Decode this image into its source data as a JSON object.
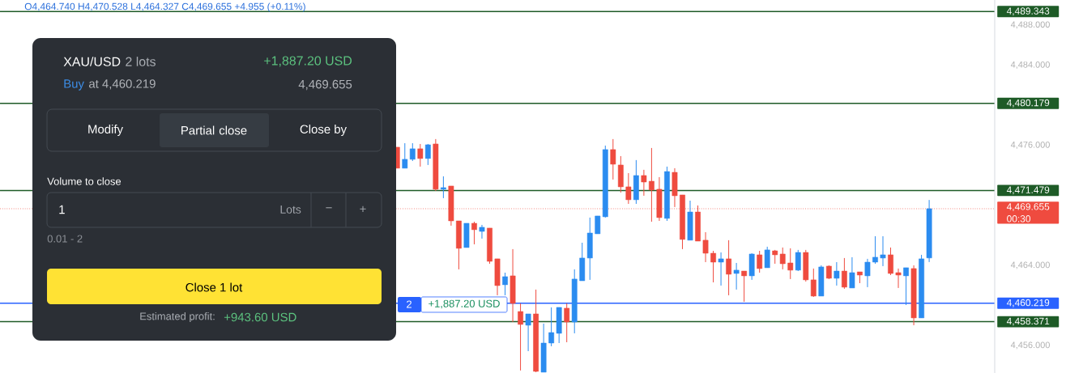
{
  "chart_data": {
    "type": "candlestick",
    "categories": [
      null,
      null,
      null,
      null,
      null,
      null,
      null,
      null,
      null,
      null,
      null,
      null,
      null,
      null,
      null,
      null,
      null,
      null,
      null,
      null,
      null,
      null,
      null,
      null,
      null,
      null,
      null,
      null,
      null,
      null,
      null,
      null,
      null,
      null,
      null,
      null,
      null,
      null,
      null,
      null,
      null,
      null,
      null,
      null,
      null,
      null,
      null,
      null,
      null,
      null,
      null,
      null,
      null,
      null,
      null,
      null,
      null,
      null,
      null,
      null,
      null,
      null,
      null,
      null,
      null,
      null,
      null,
      null,
      null,
      null,
      null,
      null,
      null,
      null,
      null,
      null,
      null,
      null,
      null,
      null,
      null,
      null,
      null,
      null,
      null,
      null,
      null,
      null,
      null,
      null,
      null,
      null,
      null,
      null,
      null,
      null,
      null,
      null,
      null,
      null,
      null,
      null,
      null,
      null,
      null,
      null,
      null,
      null,
      null,
      null,
      null,
      null,
      null,
      null,
      null,
      null,
      null,
      null,
      null,
      null,
      null,
      null,
      null,
      null,
      null,
      null,
      null,
      null,
      null
    ],
    "ohlc": [
      null,
      null,
      null,
      null,
      null,
      null,
      null,
      null,
      null,
      null,
      null,
      null,
      null,
      null,
      null,
      null,
      null,
      null,
      null,
      null,
      null,
      null,
      null,
      null,
      null,
      null,
      null,
      null,
      null,
      null,
      null,
      null,
      null,
      null,
      null,
      null,
      null,
      null,
      null,
      null,
      null,
      null,
      null,
      null,
      null,
      null,
      null,
      null,
      null,
      null,
      null,
      [
        4475.8,
        4475.8,
        4473.7,
        4473.7
      ],
      [
        4473.7,
        4476.2,
        4473.7,
        4474.59
      ],
      [
        4474.59,
        4476.2,
        4474.42,
        4475.64
      ],
      [
        4475.64,
        4476.12,
        4473.86,
        4474.67
      ],
      [
        4474.67,
        4476.12,
        4474.02,
        4476.04
      ],
      [
        4476.12,
        4476.61,
        4471.43,
        4471.6
      ],
      [
        4471.6,
        4472.89,
        4470.71,
        4471.76
      ],
      [
        4471.92,
        4471.92,
        4467.96,
        4468.44
      ],
      [
        4468.44,
        4468.44,
        4463.6,
        4465.7
      ],
      [
        4465.78,
        4468.2,
        4465.78,
        4468.2
      ],
      [
        4468.2,
        4468.36,
        4466.1,
        4467.56
      ],
      [
        4467.39,
        4468.04,
        4466.67,
        4467.8
      ],
      [
        4467.72,
        4467.72,
        4464.16,
        4464.4
      ],
      [
        4464.65,
        4464.65,
        4461.01,
        4461.98
      ],
      [
        4462.06,
        4463.27,
        4461.01,
        4462.87
      ],
      [
        4462.95,
        4465.62,
        4458.34,
        4460.2
      ],
      [
        4459.39,
        4460.2,
        4453.5,
        4458.1
      ],
      [
        4458.02,
        4459.15,
        4455.43,
        4459.15
      ],
      [
        4459.15,
        4461.58,
        4453.33,
        4453.41
      ],
      [
        4453.33,
        4458.18,
        4453.33,
        4456.24
      ],
      [
        4456.24,
        4459.8,
        4455.92,
        4457.29
      ],
      [
        4457.21,
        4459.8,
        4456.24,
        4459.8
      ],
      [
        4459.72,
        4460.2,
        4456.32,
        4458.34
      ],
      [
        4458.34,
        4463.6,
        4457.21,
        4462.63
      ],
      [
        4462.46,
        4466.26,
        4462.46,
        4464.73
      ],
      [
        4464.73,
        4468.77,
        4462.55,
        4467.23
      ],
      [
        4467.15,
        4468.93,
        4467.15,
        4468.93
      ],
      [
        4468.85,
        4475.96,
        4468.77,
        4475.56
      ],
      [
        4475.56,
        4476.61,
        4472.57,
        4474.1
      ],
      [
        4474.02,
        4474.91,
        4471.27,
        4471.84
      ],
      [
        4471.84,
        4473.21,
        4470.14,
        4470.55
      ],
      [
        4470.55,
        4474.51,
        4470.14,
        4472.97
      ],
      [
        4472.97,
        4473.54,
        4470.95,
        4472.32
      ],
      [
        4472.4,
        4475.72,
        4468.36,
        4471.52
      ],
      [
        4471.6,
        4472.81,
        4468.44,
        4468.77
      ],
      [
        4468.69,
        4473.86,
        4468.44,
        4473.37
      ],
      [
        4473.29,
        4473.7,
        4469.82,
        4470.95
      ],
      [
        4471.03,
        4471.03,
        4465.62,
        4466.59
      ],
      [
        4466.51,
        4470.46,
        4466.51,
        4469.33
      ],
      [
        4469.33,
        4469.98,
        4466.42,
        4466.42
      ],
      [
        4466.51,
        4467.31,
        4464.32,
        4465.21
      ],
      [
        4465.21,
        4465.45,
        4462.3,
        4464.32
      ],
      [
        4464.32,
        4465.29,
        4461.98,
        4464.65
      ],
      [
        4464.65,
        4466.51,
        4461.01,
        4463.11
      ],
      [
        4463.19,
        4464.24,
        4461.58,
        4463.52
      ],
      [
        4463.43,
        4463.43,
        4460.36,
        4462.95
      ],
      [
        4462.95,
        4465.21,
        4462.55,
        4465.13
      ],
      [
        4465.05,
        4465.45,
        4463.27,
        4463.68
      ],
      [
        4463.76,
        4465.86,
        4463.76,
        4465.54
      ],
      [
        4465.45,
        4465.54,
        4464.16,
        4465.05
      ],
      [
        4465.13,
        4465.78,
        4463.6,
        4464.16
      ],
      [
        4464.24,
        4465.7,
        4462.63,
        4463.52
      ],
      [
        4463.52,
        4465.54,
        4463.43,
        4465.29
      ],
      [
        4465.29,
        4465.54,
        4462.38,
        4462.55
      ],
      [
        4462.55,
        4463.68,
        4460.85,
        4460.93
      ],
      [
        4460.93,
        4464.0,
        4460.93,
        4463.84
      ],
      [
        4463.92,
        4464.0,
        4462.63,
        4462.71
      ],
      [
        4462.71,
        4464.32,
        4461.98,
        4463.43
      ],
      [
        4463.43,
        4464.73,
        4461.66,
        4461.82
      ],
      [
        4461.74,
        4464.81,
        4461.74,
        4463.27
      ],
      [
        4463.35,
        4463.35,
        4462.22,
        4463.03
      ],
      [
        4462.95,
        4464.65,
        4461.82,
        4464.32
      ],
      [
        4464.32,
        4466.91,
        4464.16,
        4464.81
      ],
      [
        4464.73,
        4466.91,
        4463.92,
        4465.05
      ],
      [
        4465.05,
        4465.78,
        4463.03,
        4463.19
      ],
      [
        4463.27,
        4463.68,
        4461.74,
        4463.03
      ],
      [
        4462.95,
        4463.76,
        4460.04,
        4463.76
      ],
      [
        4463.68,
        4464.0,
        4458.02,
        4458.75
      ],
      [
        4458.75,
        4465.05,
        4458.75,
        4464.65
      ],
      [
        4464.74,
        4470.528,
        4464.327,
        4469.655
      ],
      null,
      null,
      null,
      null,
      null,
      null,
      null,
      null
    ],
    "colors": [
      null,
      null,
      null,
      null,
      null,
      null,
      null,
      null,
      null,
      null,
      null,
      null,
      null,
      null,
      null,
      null,
      null,
      null,
      null,
      null,
      null,
      null,
      null,
      null,
      null,
      null,
      null,
      null,
      null,
      null,
      null,
      null,
      null,
      null,
      null,
      null,
      null,
      null,
      null,
      null,
      null,
      null,
      null,
      null,
      null,
      null,
      null,
      null,
      null,
      null,
      null,
      "#ef4b3f",
      "#2b8cf0",
      "#2b8cf0",
      "#ef4b3f",
      "#2b8cf0",
      "#ef4b3f",
      "#2b8cf0",
      "#ef4b3f",
      "#ef4b3f",
      "#2b8cf0",
      "#ef4b3f",
      "#2b8cf0",
      "#ef4b3f",
      "#ef4b3f",
      "#2b8cf0",
      "#ef4b3f",
      "#ef4b3f",
      "#2b8cf0",
      "#ef4b3f",
      "#2b8cf0",
      "#2b8cf0",
      "#2b8cf0",
      "#ef4b3f",
      "#2b8cf0",
      "#2b8cf0",
      "#2b8cf0",
      "#2b8cf0",
      "#2b8cf0",
      "#ef4b3f",
      "#ef4b3f",
      "#ef4b3f",
      "#2b8cf0",
      "#ef4b3f",
      "#ef4b3f",
      "#ef4b3f",
      "#2b8cf0",
      "#ef4b3f",
      "#ef4b3f",
      "#2b8cf0",
      "#ef4b3f",
      "#ef4b3f",
      "#ef4b3f",
      "#2b8cf0",
      "#ef4b3f",
      "#2b8cf0",
      "#ef4b3f",
      "#2b8cf0",
      "#ef4b3f",
      "#2b8cf0",
      "#ef4b3f",
      "#ef4b3f",
      "#ef4b3f",
      "#2b8cf0",
      "#ef4b3f",
      "#ef4b3f",
      "#2b8cf0",
      "#ef4b3f",
      "#2b8cf0",
      "#ef4b3f",
      "#2b8cf0",
      "#ef4b3f",
      "#2b8cf0",
      "#2b8cf0",
      "#2b8cf0",
      "#ef4b3f",
      "#ef4b3f",
      "#2b8cf0",
      "#ef4b3f",
      "#2b8cf0",
      "#2b8cf0",
      null,
      null,
      null,
      null,
      null,
      null,
      null,
      null
    ],
    "ylim": [
      4453.25,
      4490.5
    ],
    "yticks": [
      {
        "value": 4456,
        "label": "4,456.000"
      },
      {
        "value": 4464,
        "label": "4,464.000"
      },
      {
        "value": 4476,
        "label": "4,476.000"
      },
      {
        "value": 4484,
        "label": "4,484.000"
      },
      {
        "value": 4488,
        "label": "4,488.000"
      }
    ],
    "ref_lines": [
      {
        "axis": "y",
        "value": 4489.343,
        "label": "4,489.343",
        "color": "#1e5b27"
      },
      {
        "axis": "y",
        "value": 4480.179,
        "label": "4,480.179",
        "color": "#1e5b27"
      },
      {
        "axis": "y",
        "value": 4471.479,
        "label": "4,471.479",
        "color": "#1e5b27"
      },
      {
        "axis": "y",
        "value": 4469.655,
        "label": "4,469.655",
        "color": "#ef4b3f",
        "line_style": "dotted"
      },
      {
        "axis": "y",
        "value": 4460.219,
        "label": "4,460.219",
        "color": "#2962ff"
      },
      {
        "axis": "y",
        "value": 4458.371,
        "label": "4,458.371",
        "color": "#1e5b27"
      }
    ],
    "annotations": [
      "O4,464.740 H4,470.528 L4,464.327 C4,469.655 +4.955 (+0.11%)",
      "XAU/USD",
      "2 lots",
      "+1,887.20 USD",
      "Buy",
      "at 4,460.219",
      "4,469.655",
      "Modify",
      "Partial close",
      "Close by",
      "Volume to close",
      "1",
      "Lots",
      "−",
      "+",
      "0.01 - 2",
      "Close 1 lot",
      "Estimated profit:",
      "+943.60 USD",
      "2",
      "+1,887.20 USD",
      "00:30"
    ]
  }
}
